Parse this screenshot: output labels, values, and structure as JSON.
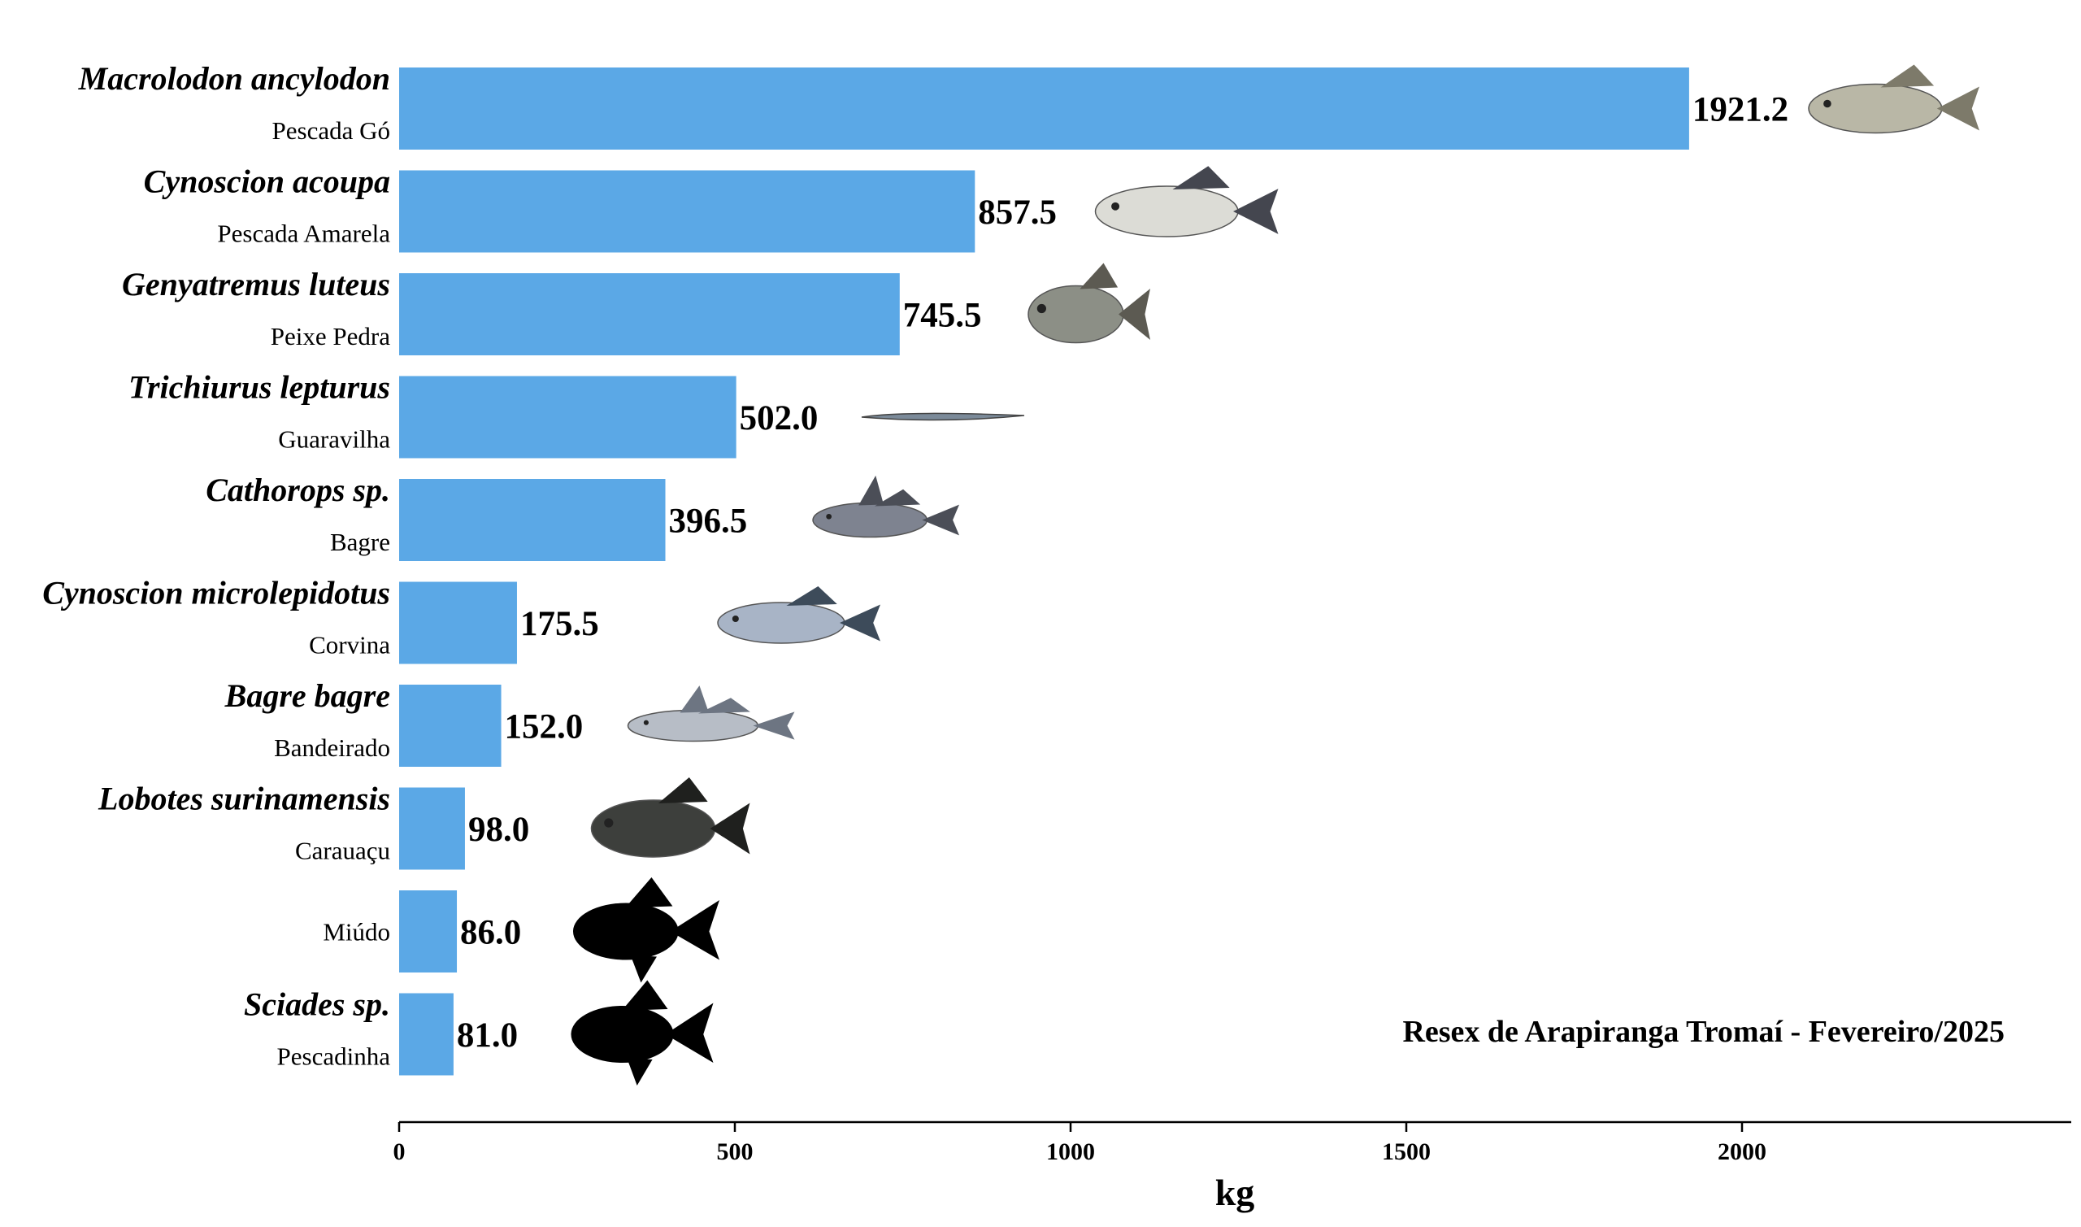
{
  "chart_data": {
    "type": "bar",
    "orientation": "horizontal",
    "title": "",
    "xlabel": "kg",
    "ylabel": "",
    "xlim": [
      0,
      2500
    ],
    "xticks": [
      0,
      500,
      1000,
      1500,
      2000
    ],
    "grid": false,
    "annotation": "Resex de Arapiranga Tromaí - Fevereiro/2025",
    "bar_color": "#5BA8E6",
    "categories": [
      {
        "scientific": "Macrolodon ancylodon",
        "common": "Pescada Gó",
        "value": 1921.2,
        "label": "1921.2",
        "icon": "fish-photo-icon"
      },
      {
        "scientific": "Cynoscion acoupa",
        "common": "Pescada Amarela",
        "value": 857.5,
        "label": "857.5",
        "icon": "fish-photo-icon"
      },
      {
        "scientific": "Genyatremus luteus",
        "common": "Peixe Pedra",
        "value": 745.5,
        "label": "745.5",
        "icon": "fish-photo-icon"
      },
      {
        "scientific": "Trichiurus lepturus",
        "common": "Guaravilha",
        "value": 502.0,
        "label": "502.0",
        "icon": "eel-fish-photo-icon"
      },
      {
        "scientific": "Cathorops sp.",
        "common": "Bagre",
        "value": 396.5,
        "label": "396.5",
        "icon": "catfish-photo-icon"
      },
      {
        "scientific": "Cynoscion microlepidotus",
        "common": "Corvina",
        "value": 175.5,
        "label": "175.5",
        "icon": "fish-photo-icon"
      },
      {
        "scientific": "Bagre bagre",
        "common": "Bandeirado",
        "value": 152.0,
        "label": "152.0",
        "icon": "catfish-photo-icon"
      },
      {
        "scientific": "Lobotes surinamensis",
        "common": "Carauaçu",
        "value": 98.0,
        "label": "98.0",
        "icon": "tripletail-fish-photo-icon"
      },
      {
        "scientific": "",
        "common": "Miúdo",
        "value": 86.0,
        "label": "86.0",
        "icon": "fish-silhouette-icon"
      },
      {
        "scientific": "Sciades sp.",
        "common": "Pescadinha",
        "value": 81.0,
        "label": "81.0",
        "icon": "fish-silhouette-icon"
      }
    ]
  }
}
